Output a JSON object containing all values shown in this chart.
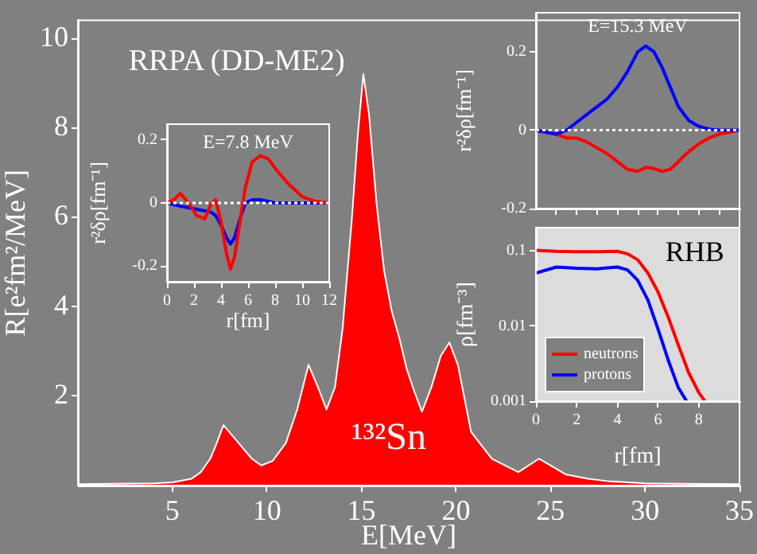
{
  "chart_data": [
    {
      "type": "area",
      "title": "RRPA (DD-ME2)",
      "xlabel": "E[MeV]",
      "ylabel": "R[e²fm²/MeV]",
      "annotations": [
        "¹³²Sn"
      ],
      "x": [
        0,
        2,
        4,
        5,
        6,
        6.5,
        7,
        7.3,
        7.7,
        8.2,
        8.6,
        9.2,
        9.7,
        10.3,
        11,
        11.6,
        12.2,
        12.7,
        13.15,
        13.6,
        14,
        14.5,
        14.8,
        15.1,
        15.4,
        15.8,
        16.2,
        16.6,
        17,
        17.4,
        17.8,
        18.2,
        18.7,
        19.2,
        19.65,
        20.1,
        20.8,
        21.9,
        23.3,
        24.4,
        25.8,
        27,
        28,
        30,
        32,
        35
      ],
      "values": [
        0.03,
        0.04,
        0.05,
        0.07,
        0.15,
        0.3,
        0.6,
        0.9,
        1.35,
        1.1,
        0.9,
        0.6,
        0.45,
        0.55,
        0.95,
        1.7,
        2.7,
        2.2,
        1.7,
        2.2,
        3.5,
        6.0,
        7.8,
        9.2,
        8.3,
        6.3,
        4.8,
        3.9,
        3.3,
        2.6,
        2.1,
        1.65,
        2.2,
        2.9,
        3.2,
        2.7,
        1.2,
        0.6,
        0.3,
        0.6,
        0.25,
        0.15,
        0.1,
        0.05,
        0.04,
        0.03
      ],
      "color": "#ff0000",
      "xlim": [
        0,
        35
      ],
      "ylim": [
        0,
        10.4
      ],
      "xticks": [
        5,
        10,
        15,
        20,
        25,
        30,
        35
      ],
      "yticks": [
        2,
        4,
        6,
        8,
        10
      ]
    },
    {
      "type": "line",
      "title": "E=7.8 MeV",
      "xlabel": "r[fm]",
      "ylabel": "r²δρ[fm⁻¹]",
      "x": [
        0,
        0.5,
        1,
        1.6,
        2.2,
        2.8,
        3.3,
        3.6,
        4.0,
        4.4,
        4.7,
        5.0,
        5.4,
        5.8,
        6.3,
        6.9,
        7.5,
        8,
        9,
        10,
        11,
        12
      ],
      "series": [
        {
          "color": "#ff0000",
          "values": [
            0,
            0.01,
            0.03,
            0.0,
            -0.04,
            -0.05,
            0.0,
            0.01,
            -0.06,
            -0.16,
            -0.21,
            -0.17,
            -0.06,
            0.05,
            0.13,
            0.15,
            0.14,
            0.11,
            0.06,
            0.02,
            0.005,
            0
          ]
        },
        {
          "color": "#0000ff",
          "values": [
            0,
            -0.005,
            -0.01,
            -0.015,
            -0.02,
            -0.025,
            -0.03,
            -0.04,
            -0.07,
            -0.11,
            -0.13,
            -0.11,
            -0.05,
            0,
            0.01,
            0.01,
            0.005,
            0,
            0,
            0,
            0,
            0
          ]
        }
      ],
      "xlim": [
        0,
        12
      ],
      "ylim": [
        -0.25,
        0.25
      ],
      "xticks": [
        0,
        2,
        4,
        6,
        8,
        10,
        12
      ],
      "yticks": [
        -0.2,
        0,
        0.2
      ],
      "ref_lines": [
        {
          "axis": "y",
          "value": 0,
          "color": "#ffffff",
          "line_style": "dotted"
        }
      ]
    },
    {
      "type": "line",
      "title": "E=15.3 MeV",
      "ylabel": "r²δρ[fm⁻¹]",
      "x": [
        0,
        1,
        1.5,
        2,
        2.5,
        3,
        3.5,
        4,
        4.5,
        5,
        5.4,
        5.8,
        6.2,
        6.6,
        7,
        7.5,
        8,
        8.5,
        9,
        10
      ],
      "series": [
        {
          "color": "#0000ff",
          "values": [
            0,
            -0.01,
            0,
            0.02,
            0.04,
            0.06,
            0.08,
            0.11,
            0.15,
            0.2,
            0.215,
            0.2,
            0.16,
            0.11,
            0.06,
            0.025,
            0.01,
            0.003,
            0,
            0
          ]
        },
        {
          "color": "#ff0000",
          "values": [
            0,
            -0.01,
            -0.02,
            -0.02,
            -0.03,
            -0.045,
            -0.06,
            -0.08,
            -0.1,
            -0.105,
            -0.095,
            -0.098,
            -0.105,
            -0.1,
            -0.08,
            -0.055,
            -0.035,
            -0.02,
            -0.01,
            0
          ]
        }
      ],
      "xlim": [
        0,
        10
      ],
      "ylim": [
        -0.2,
        0.3
      ],
      "xticks": [
        {
          "value": 1,
          "label": null
        },
        {
          "value": 2,
          "label": null
        },
        {
          "value": 3,
          "label": null
        },
        {
          "value": 4,
          "label": null
        },
        {
          "value": 5,
          "label": null
        },
        {
          "value": 6,
          "label": null
        },
        {
          "value": 7,
          "label": null
        },
        {
          "value": 8,
          "label": null
        },
        {
          "value": 9,
          "label": null
        }
      ],
      "yticks": [
        -0.2,
        0,
        0.2
      ],
      "tick_labels": "y",
      "ref_lines": [
        {
          "axis": "y",
          "value": 0,
          "color": "#ffffff",
          "line_style": "dotted"
        }
      ]
    },
    {
      "type": "line",
      "title": "RHB",
      "xlabel": "r[fm]",
      "ylabel": "ρ[fm⁻³]",
      "log": "y",
      "legend": "bottom left",
      "series": [
        {
          "name": "neutrons",
          "color": "#ff0000",
          "x": [
            0,
            1,
            2,
            3,
            4,
            4.5,
            5,
            5.5,
            6,
            6.5,
            7,
            7.5,
            8,
            8.3
          ],
          "values": [
            0.1,
            0.097,
            0.096,
            0.096,
            0.097,
            0.09,
            0.075,
            0.05,
            0.028,
            0.013,
            0.0055,
            0.0024,
            0.0013,
            0.001
          ]
        },
        {
          "name": "protons",
          "color": "#0000ff",
          "x": [
            0,
            1,
            2,
            3,
            4,
            4.5,
            5,
            5.5,
            6,
            6.5,
            7,
            7.4
          ],
          "values": [
            0.05,
            0.06,
            0.058,
            0.057,
            0.06,
            0.055,
            0.04,
            0.022,
            0.009,
            0.0035,
            0.0015,
            0.001
          ]
        }
      ],
      "xlim": [
        0,
        10
      ],
      "ylim": [
        0.001,
        0.2
      ],
      "xticks": [
        0,
        2,
        4,
        6,
        8
      ],
      "yticks": [
        0.001,
        0.01,
        0.1
      ]
    }
  ]
}
